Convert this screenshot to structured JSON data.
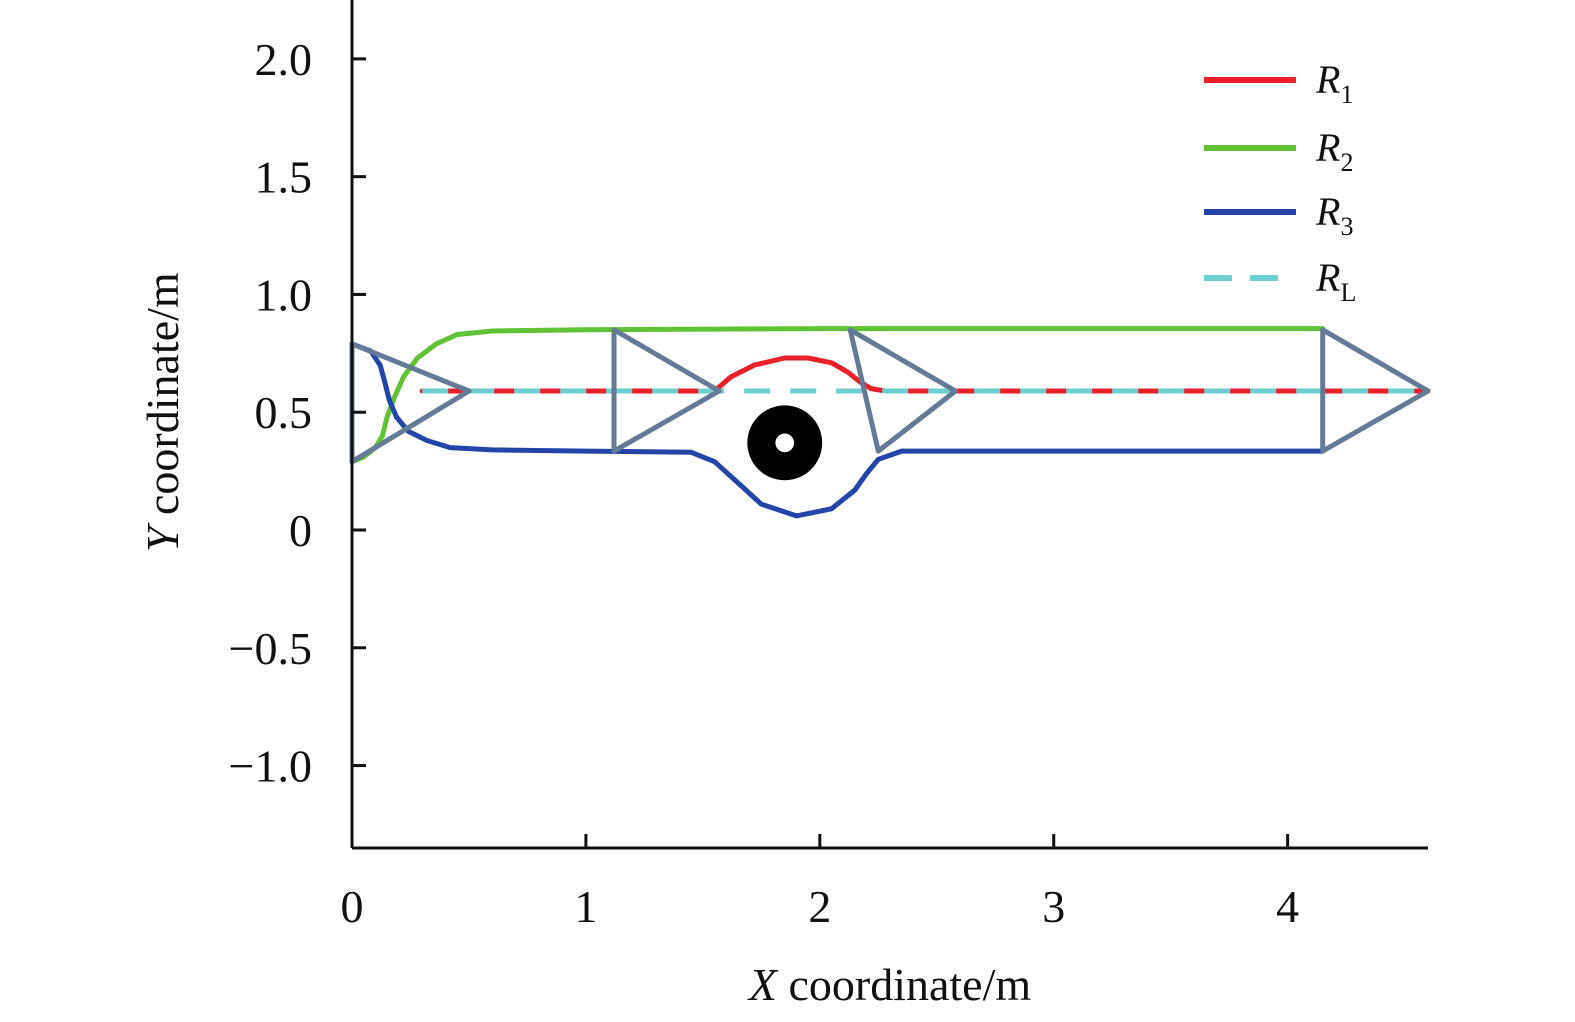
{
  "chart_data": {
    "type": "line",
    "xlabel": {
      "var": "X",
      "rest": " coordinate/m"
    },
    "ylabel": {
      "var": "Y",
      "rest": " coordinate/m"
    },
    "xlim": [
      0,
      4.6
    ],
    "ylim": [
      -1.35,
      2.25
    ],
    "xticks": [
      0,
      1,
      2,
      3,
      4
    ],
    "xtick_labels": [
      "0",
      "1",
      "2",
      "3",
      "4"
    ],
    "yticks": [
      2.0,
      1.5,
      1.0,
      0.5,
      0,
      -0.5,
      -1.0
    ],
    "ytick_labels": [
      "2.0",
      "1.5",
      "1.0",
      "0.5",
      "0",
      "−0.5",
      "−1.0"
    ],
    "grid": false,
    "legend_position": "top-right",
    "series": [
      {
        "name": "R",
        "sub": "1",
        "color": "#e8202a",
        "style": "solid",
        "x": [
          0.3,
          1.55,
          1.62,
          1.72,
          1.85,
          1.95,
          2.05,
          2.12,
          2.17,
          2.22,
          2.28,
          4.6
        ],
        "y": [
          0.59,
          0.59,
          0.65,
          0.7,
          0.73,
          0.73,
          0.71,
          0.67,
          0.63,
          0.6,
          0.59,
          0.59
        ]
      },
      {
        "name": "R",
        "sub": "2",
        "color": "#62c235",
        "style": "solid",
        "x": [
          0.0,
          0.05,
          0.1,
          0.13,
          0.15,
          0.18,
          0.22,
          0.28,
          0.36,
          0.45,
          0.6,
          1.0,
          2.0,
          3.0,
          4.15
        ],
        "y": [
          0.29,
          0.31,
          0.35,
          0.4,
          0.48,
          0.56,
          0.65,
          0.73,
          0.79,
          0.83,
          0.845,
          0.85,
          0.855,
          0.855,
          0.855
        ]
      },
      {
        "name": "R",
        "sub": "3",
        "color": "#2444a8",
        "style": "solid",
        "x": [
          0.0,
          0.08,
          0.12,
          0.14,
          0.16,
          0.19,
          0.24,
          0.32,
          0.42,
          0.6,
          1.0,
          1.45,
          1.55,
          1.65,
          1.75,
          1.9,
          2.05,
          2.15,
          2.2,
          2.25,
          2.35,
          3.0,
          4.15
        ],
        "y": [
          0.79,
          0.76,
          0.7,
          0.63,
          0.55,
          0.48,
          0.42,
          0.38,
          0.35,
          0.34,
          0.335,
          0.33,
          0.29,
          0.2,
          0.11,
          0.06,
          0.09,
          0.17,
          0.24,
          0.3,
          0.335,
          0.335,
          0.335
        ]
      },
      {
        "name": "R",
        "sub": "L",
        "color": "#6fcfd0",
        "style": "dashed",
        "x": [
          0.3,
          4.6
        ],
        "y": [
          0.59,
          0.59
        ]
      }
    ],
    "formations": [
      {
        "base_x": 0.0,
        "top_y": 0.79,
        "bottom_y": 0.29,
        "tip_x": 0.5,
        "tip_y": 0.59
      },
      {
        "base_x": 1.12,
        "top_y": 0.85,
        "bottom_y": 0.335,
        "tip_x": 1.57,
        "tip_y": 0.59
      },
      {
        "base_x": 2.13,
        "top_y": 0.85,
        "bottom_y": 0.335,
        "tip_x": 2.58,
        "tip_y": 0.59,
        "bottom_x": 2.25
      },
      {
        "base_x": 4.15,
        "top_y": 0.85,
        "bottom_y": 0.335,
        "tip_x": 4.6,
        "tip_y": 0.59
      }
    ],
    "formation_color": "#647a95",
    "obstacle": {
      "x": 1.85,
      "y": 0.37,
      "radius": 0.16,
      "hole_radius": 0.04,
      "color": "#000000"
    }
  }
}
